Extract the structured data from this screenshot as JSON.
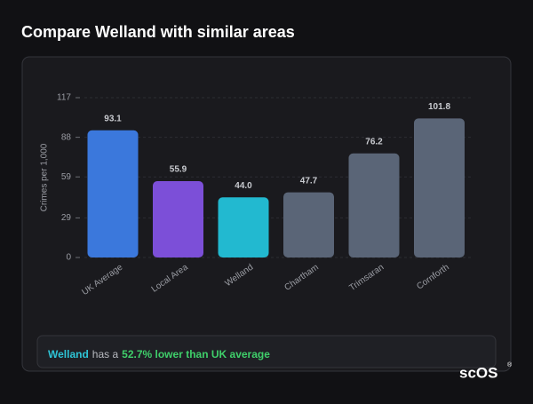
{
  "chart_data": {
    "type": "bar",
    "title": "Compare Welland with similar areas",
    "y_label": "Crimes per 1,000",
    "categories": [
      "UK Average",
      "Local Area",
      "Welland",
      "Chartham",
      "Trimsaran",
      "Cornforth"
    ],
    "values": [
      93.1,
      55.9,
      44.0,
      47.7,
      76.2,
      101.8
    ],
    "value_labels": [
      "93.1",
      "55.9",
      "44.0",
      "47.7",
      "76.2",
      "101.8"
    ],
    "colors": [
      "#3b78dc",
      "#7c4fd8",
      "#22b9d0",
      "#5a6577",
      "#5a6577",
      "#5a6577"
    ],
    "ylim": [
      0,
      117
    ],
    "yticks": [
      0,
      29,
      59,
      88,
      117
    ],
    "grid": true
  },
  "footer": {
    "area": "Welland",
    "text": "has a",
    "highlight": "52.7% lower than UK average"
  },
  "logo": {
    "text": "scOS",
    "mark": "®"
  }
}
